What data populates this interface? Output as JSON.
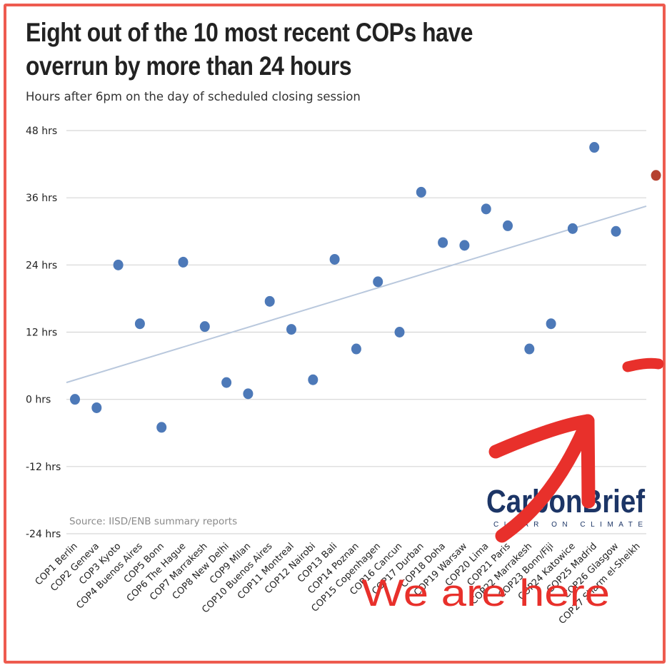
{
  "title": "Eight out of the 10 most recent COPs have overrun by more than 24 hours",
  "subtitle": "Hours after 6pm on the day of scheduled closing session",
  "source": "Source: IISD/ENB summary reports",
  "logo": {
    "main": "CarbonBrief",
    "tagline": "CLEAR ON CLIMATE"
  },
  "annotation": "We are here",
  "colors": {
    "dots": "#4d79b8",
    "highlight": "#b5412f",
    "trend": "#b9c8dd",
    "grid": "#d6d6d6",
    "annotation": "#e8302b",
    "frame": "#ee5b4f"
  },
  "chart_data": {
    "type": "scatter",
    "ylim": [
      -24,
      48
    ],
    "yticks": [
      48,
      36,
      24,
      12,
      0,
      -12,
      -24
    ],
    "ytick_labels": [
      "48 hrs",
      "36 hrs",
      "24 hrs",
      "12 hrs",
      "0 hrs",
      "-12 hrs",
      "-24 hrs"
    ],
    "categories": [
      "COP1 Berlin",
      "COP2 Geneva",
      "COP3 Kyoto",
      "COP4 Buenos Aires",
      "COP5 Bonn",
      "COP6 The Hague",
      "COP7 Marrakesh",
      "COP8 New Delhi",
      "COP9 Milan",
      "COP10 Buenos Aires",
      "COP11 Montreal",
      "COP12 Nairobi",
      "COP13 Bali",
      "COP14 Poznan",
      "COP15 Copenhagen",
      "COP16 Cancun",
      "COP17 Durban",
      "COP18 Doha",
      "COP19 Warsaw",
      "COP20 Lima",
      "COP21 Paris",
      "COP22 Marrakesh",
      "COP23 Bonn/Fiji",
      "COP24 Katowice",
      "COP25 Madrid",
      "COP26 Glasgow",
      "COP27 Sharm el-Sheikh"
    ],
    "values": [
      0,
      -1.5,
      24,
      13.5,
      -5,
      24.5,
      13,
      3,
      1,
      17.5,
      12.5,
      3.5,
      25,
      9,
      21,
      12,
      37,
      28,
      27.5,
      34,
      31,
      9,
      13.5,
      30.5,
      45,
      30,
      40
    ],
    "highlight_index": 26,
    "trendline": {
      "start": 3,
      "end": 34.5
    },
    "grid": true
  }
}
